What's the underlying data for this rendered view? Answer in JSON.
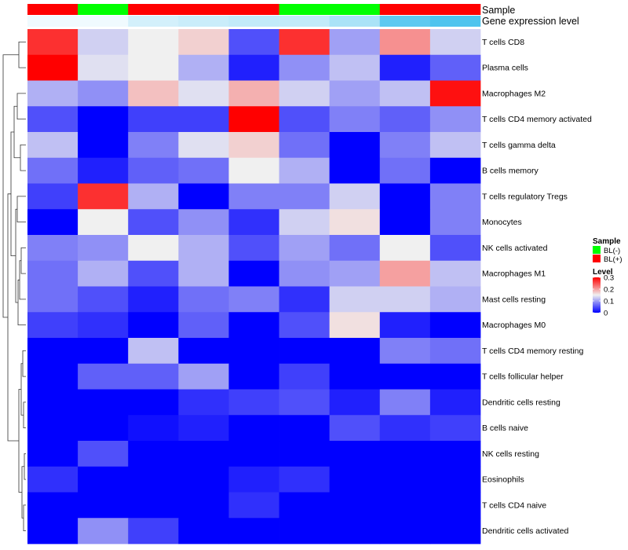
{
  "chart_data": {
    "type": "heatmap",
    "annotation_titles": [
      "Sample",
      "Gene expression level"
    ],
    "sample_annotation": [
      "BL(+)",
      "BL(-)",
      "BL(+)",
      "BL(+)",
      "BL(+)",
      "BL(-)",
      "BL(-)",
      "BL(+)",
      "BL(+)"
    ],
    "gene_expression_level": [
      0.02,
      0.02,
      0.08,
      0.1,
      0.12,
      0.12,
      0.18,
      0.4,
      0.45
    ],
    "rows": [
      "T cells CD8",
      "Plasma cells",
      "Macrophages M2",
      "T cells CD4 memory activated",
      "T cells gamma delta",
      "B cells memory",
      "T cells regulatory  Tregs",
      "Monocytes",
      "NK cells activated",
      "Macrophages M1",
      "Mast cells resting",
      "Macrophages M0",
      "T cells CD4 memory resting",
      "T cells follicular helper",
      "Dendritic cells resting",
      "B cells naive",
      "NK cells resting",
      "Eosinophils",
      "T cells CD4 naive",
      "Dendritic cells activated"
    ],
    "values": [
      [
        0.27,
        0.13,
        0.15,
        0.17,
        0.05,
        0.27,
        0.1,
        0.21,
        0.13
      ],
      [
        0.3,
        0.14,
        0.15,
        0.11,
        0.02,
        0.09,
        0.12,
        0.02,
        0.06
      ],
      [
        0.11,
        0.09,
        0.18,
        0.14,
        0.19,
        0.13,
        0.1,
        0.12,
        0.29
      ],
      [
        0.05,
        0.0,
        0.04,
        0.04,
        0.3,
        0.05,
        0.08,
        0.06,
        0.09
      ],
      [
        0.12,
        0.0,
        0.08,
        0.14,
        0.17,
        0.07,
        0.0,
        0.08,
        0.12
      ],
      [
        0.07,
        0.02,
        0.06,
        0.07,
        0.15,
        0.11,
        0.0,
        0.07,
        0.0
      ],
      [
        0.04,
        0.27,
        0.11,
        0.0,
        0.08,
        0.08,
        0.13,
        0.0,
        0.08
      ],
      [
        0.0,
        0.15,
        0.05,
        0.09,
        0.03,
        0.13,
        0.16,
        0.0,
        0.08
      ],
      [
        0.08,
        0.09,
        0.15,
        0.11,
        0.05,
        0.1,
        0.07,
        0.15,
        0.05
      ],
      [
        0.07,
        0.11,
        0.05,
        0.11,
        0.0,
        0.09,
        0.1,
        0.2,
        0.12
      ],
      [
        0.07,
        0.05,
        0.02,
        0.07,
        0.08,
        0.03,
        0.13,
        0.13,
        0.11
      ],
      [
        0.04,
        0.03,
        0.0,
        0.06,
        0.0,
        0.05,
        0.16,
        0.02,
        0.0
      ],
      [
        0.0,
        0.0,
        0.12,
        0.0,
        0.0,
        0.0,
        0.0,
        0.08,
        0.07
      ],
      [
        0.0,
        0.06,
        0.06,
        0.1,
        0.0,
        0.04,
        0.0,
        0.0,
        0.0
      ],
      [
        0.0,
        0.0,
        0.0,
        0.03,
        0.04,
        0.05,
        0.02,
        0.08,
        0.02
      ],
      [
        0.0,
        0.0,
        0.01,
        0.02,
        0.0,
        0.0,
        0.05,
        0.03,
        0.04
      ],
      [
        0.0,
        0.05,
        0.0,
        0.0,
        0.0,
        0.0,
        0.0,
        0.0,
        0.0
      ],
      [
        0.03,
        0.0,
        0.0,
        0.0,
        0.02,
        0.03,
        0.0,
        0.0,
        0.0
      ],
      [
        0.0,
        0.0,
        0.0,
        0.0,
        0.03,
        0.0,
        0.0,
        0.0,
        0.0
      ],
      [
        0.0,
        0.09,
        0.04,
        0.0,
        0.0,
        0.0,
        0.0,
        0.0,
        0.0
      ]
    ],
    "color_scale": {
      "low": "#0000ff",
      "mid": "#f0f0f0",
      "high": "#ff0000",
      "midpoint": 0.15,
      "range": [
        0,
        0.3
      ]
    },
    "legend": {
      "sample_title": "Sample",
      "sample_entries": [
        {
          "label": "BL(-)",
          "color": "#00ff00"
        },
        {
          "label": "BL(+)",
          "color": "#ff0000"
        }
      ],
      "level_title": "Level",
      "level_ticks": [
        {
          "value": 0.3,
          "label": "0.3"
        },
        {
          "value": 0.2,
          "label": "0.2"
        },
        {
          "value": 0.1,
          "label": "0.1"
        },
        {
          "value": 0.0,
          "label": "0"
        }
      ],
      "placement": "right"
    },
    "row_dendrogram": true,
    "grid": false
  }
}
